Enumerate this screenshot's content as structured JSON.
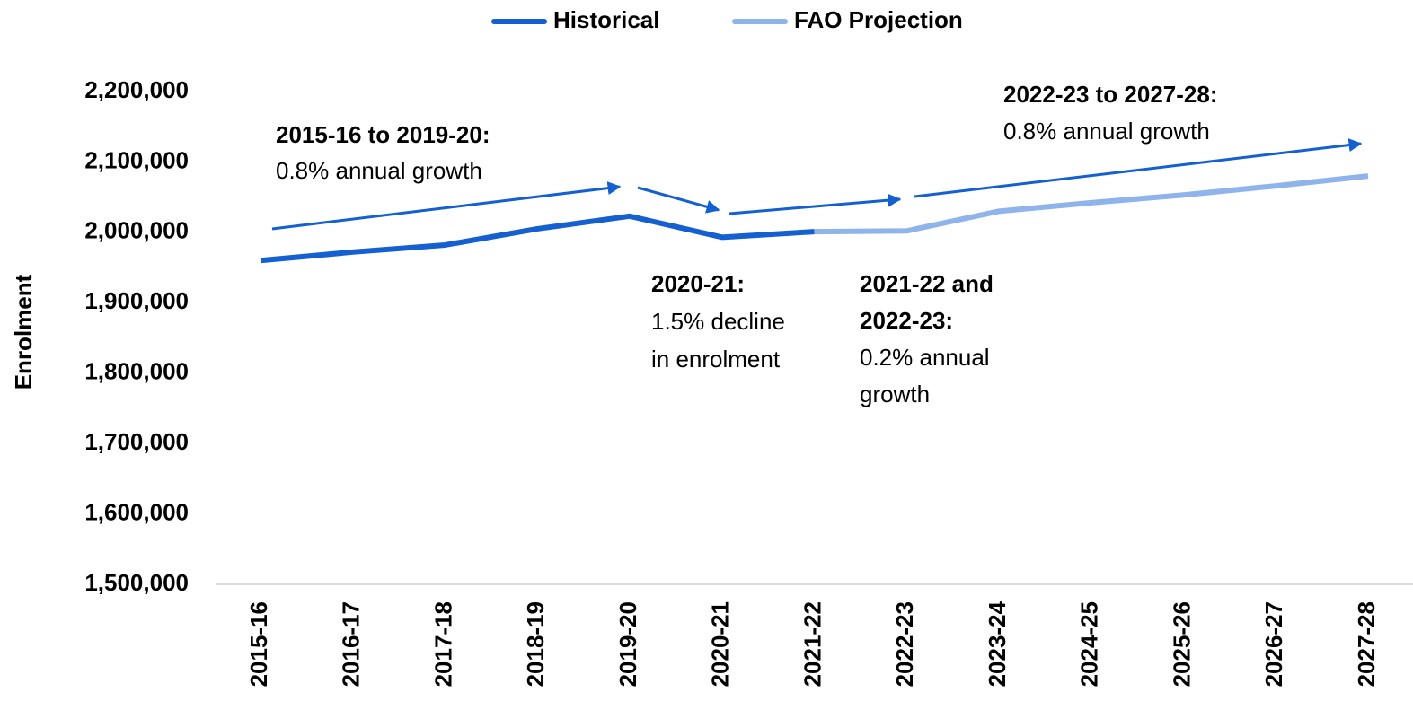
{
  "chart_data": {
    "type": "line",
    "y_label": "Enrolment",
    "categories": [
      "2015-16",
      "2016-17",
      "2017-18",
      "2018-19",
      "2019-20",
      "2020-21",
      "2021-22",
      "2022-23",
      "2023-24",
      "2024-25",
      "2025-26",
      "2026-27",
      "2027-28"
    ],
    "series": [
      {
        "name": "Historical",
        "color": "#1560d1",
        "values": [
          1960000,
          1972000,
          1982000,
          2005000,
          2023000,
          1993000,
          2001000,
          null,
          null,
          null,
          null,
          null,
          null
        ]
      },
      {
        "name": "FAO Projection",
        "color": "#8fb4ec",
        "values": [
          null,
          null,
          null,
          null,
          null,
          null,
          2001000,
          2002000,
          2030000,
          2042000,
          2053000,
          2066000,
          2080000
        ]
      }
    ],
    "ylim": [
      1500000,
      2200000
    ],
    "yticks": [
      {
        "value": 1500000,
        "label": "1,500,000"
      },
      {
        "value": 1600000,
        "label": "1,600,000"
      },
      {
        "value": 1700000,
        "label": "1,700,000"
      },
      {
        "value": 1800000,
        "label": "1,800,000"
      },
      {
        "value": 1900000,
        "label": "1,900,000"
      },
      {
        "value": 2000000,
        "label": "2,000,000"
      },
      {
        "value": 2100000,
        "label": "2,100,000"
      },
      {
        "value": 2200000,
        "label": "2,200,000"
      }
    ],
    "grid": false,
    "legend": "top",
    "annotations": [
      {
        "title": [
          "2015-16 to 2019-20:"
        ],
        "text": [
          "0.8% annual growth"
        ]
      },
      {
        "title": [
          "2020-21:"
        ],
        "text": [
          "1.5% decline",
          "in enrolment"
        ]
      },
      {
        "title": [
          "2021-22 and",
          "2022-23:"
        ],
        "text": [
          "0.2% annual",
          "growth"
        ]
      },
      {
        "title": [
          "2022-23 to 2027-28:"
        ],
        "text": [
          "0.8% annual growth"
        ]
      }
    ]
  }
}
